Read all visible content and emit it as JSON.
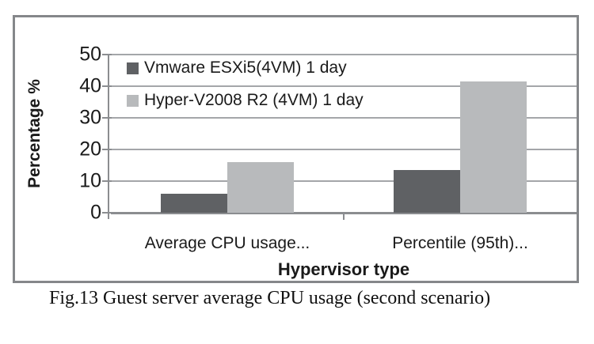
{
  "figure": {
    "caption": "Fig.13 Guest server average CPU usage (second scenario)"
  },
  "chart_data": {
    "type": "bar",
    "title": "",
    "categories": [
      "Average CPU usage...",
      "Percentile (95th)..."
    ],
    "series": [
      {
        "name": "Vmware ESXi5(4VM) 1 day",
        "color": "#5f6164",
        "values": [
          6,
          13.5
        ]
      },
      {
        "name": "Hyper-V2008 R2 (4VM) 1 day",
        "color": "#b8babc",
        "values": [
          16,
          41.5
        ]
      }
    ],
    "xlabel": "Hypervisor type",
    "ylabel": "Percentage %",
    "ylim": [
      0,
      50
    ],
    "yticks": [
      0,
      10,
      20,
      30,
      40,
      50
    ],
    "grid": true,
    "legend_position": "top-left-inside",
    "colors": {
      "gridline": "#a4a6a9",
      "axis": "#8b8d90",
      "border": "#85878a",
      "text": "#1a1a1a",
      "background": "#ffffff"
    }
  }
}
